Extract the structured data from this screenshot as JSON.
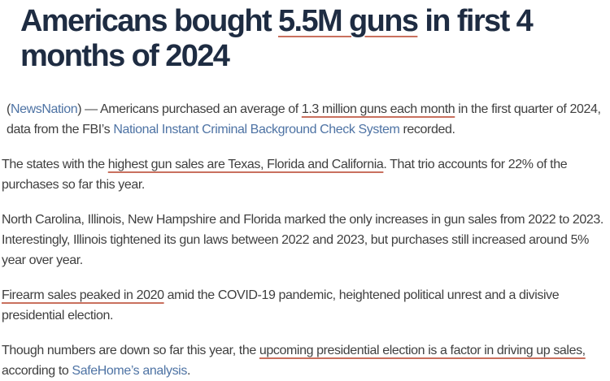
{
  "colors": {
    "headline": "#1e2c42",
    "body": "#3f3f3f",
    "link": "#4e73a4",
    "underline": "#c9705e",
    "page-bg": "#ffffff"
  },
  "headline": {
    "runs": [
      {
        "text": "Americans bought ",
        "style": "plain"
      },
      {
        "text": "5.5M guns",
        "style": "underline"
      },
      {
        "text": " in first 4\nmonths of 2024",
        "style": "plain"
      }
    ]
  },
  "paragraphs": [
    {
      "runs": [
        {
          "text": "(",
          "style": "plain"
        },
        {
          "text": "NewsNation",
          "style": "link"
        },
        {
          "text": ") — Americans purchased an average of ",
          "style": "plain"
        },
        {
          "text": "1.3 million guns each month",
          "style": "underline"
        },
        {
          "text": " in the first quarter of 2024, data from the FBI’s ",
          "style": "plain"
        },
        {
          "text": "National Instant Criminal Background Check System",
          "style": "link"
        },
        {
          "text": " recorded.",
          "style": "plain"
        }
      ]
    },
    {
      "runs": [
        {
          "text": "The states with the ",
          "style": "plain"
        },
        {
          "text": "highest gun sales are Texas, Florida and California",
          "style": "underline"
        },
        {
          "text": ". That trio accounts for 22% of the purchases so far this year.",
          "style": "plain"
        }
      ]
    },
    {
      "runs": [
        {
          "text": "North Carolina, Illinois, New Hampshire and Florida marked the only increases in gun sales from 2022 to 2023. Interestingly, Illinois tightened its gun laws between 2022 and 2023, but purchases still increased around 5% year over year.",
          "style": "plain"
        }
      ]
    },
    {
      "runs": [
        {
          "text": "Firearm sales peaked in 2020",
          "style": "underline"
        },
        {
          "text": " amid the COVID-19 pandemic, heightened political unrest and a divisive presidential election.",
          "style": "plain"
        }
      ]
    },
    {
      "runs": [
        {
          "text": "Though numbers are down so far this year, the ",
          "style": "plain"
        },
        {
          "text": "upcoming presidential election is a factor in driving up sales,",
          "style": "underline"
        },
        {
          "text": " according to ",
          "style": "plain"
        },
        {
          "text": "SafeHome’s analysis",
          "style": "link"
        },
        {
          "text": ".",
          "style": "plain"
        }
      ]
    }
  ]
}
